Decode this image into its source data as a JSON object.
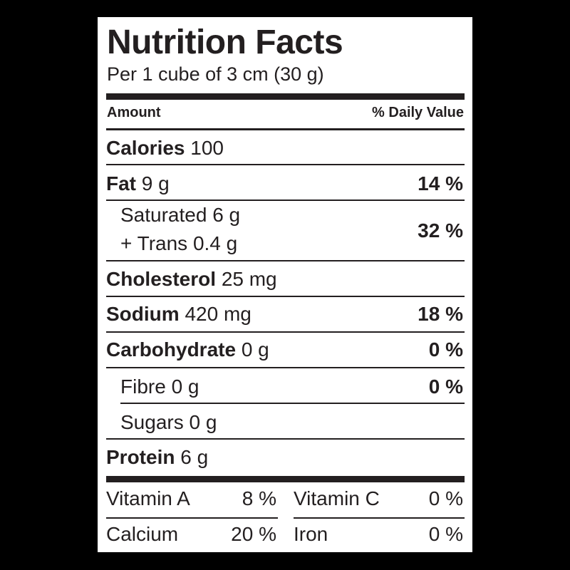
{
  "label": {
    "title": "Nutrition Facts",
    "serving": "Per 1 cube of 3 cm (30 g)",
    "header_amount": "Amount",
    "header_dv": "% Daily Value",
    "calories": {
      "name": "Calories",
      "amount": "100"
    },
    "fat": {
      "name": "Fat",
      "amount": "9 g",
      "dv": "14 %"
    },
    "saturated": {
      "text": "Saturated 6 g"
    },
    "trans": {
      "text": "+ Trans 0.4 g",
      "dv": "32 %"
    },
    "cholesterol": {
      "name": "Cholesterol",
      "amount": "25 mg"
    },
    "sodium": {
      "name": "Sodium",
      "amount": "420 mg",
      "dv": "18 %"
    },
    "carbohydrate": {
      "name": "Carbohydrate",
      "amount": "0 g",
      "dv": "0 %"
    },
    "fibre": {
      "text": "Fibre 0 g",
      "dv": "0 %"
    },
    "sugars": {
      "text": "Sugars 0 g"
    },
    "protein": {
      "name": "Protein",
      "amount": "6 g"
    },
    "vitamin_a": {
      "name": "Vitamin A",
      "dv": "8 %"
    },
    "vitamin_c": {
      "name": "Vitamin C",
      "dv": "0 %"
    },
    "calcium": {
      "name": "Calcium",
      "dv": "20 %"
    },
    "iron": {
      "name": "Iron",
      "dv": "0 %"
    }
  }
}
